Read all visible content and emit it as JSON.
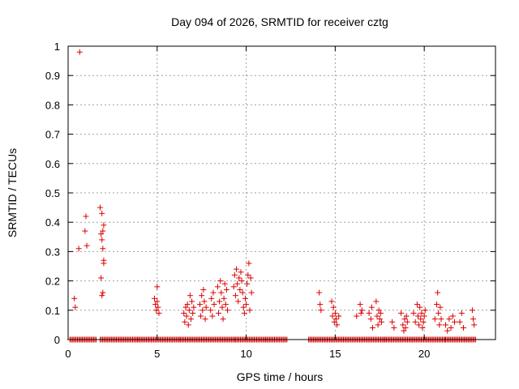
{
  "chart_data": {
    "type": "scatter",
    "title": "Day 094 of 2026, SRMTID for receiver cztg",
    "xlabel": "GPS time / hours",
    "ylabel": "SRMTID / TECUs",
    "xlim": [
      0,
      24
    ],
    "ylim": [
      0,
      1
    ],
    "xticks": [
      0,
      5,
      10,
      15,
      20
    ],
    "yticks": [
      0,
      0.1,
      0.2,
      0.3,
      0.4,
      0.5,
      0.6,
      0.7,
      0.8,
      0.9,
      1
    ],
    "xtick_labels": [
      "0",
      "5",
      "10",
      "15",
      "20"
    ],
    "ytick_labels": [
      "0",
      "0.1",
      "0.2",
      "0.3",
      "0.4",
      "0.5",
      "0.6",
      "0.7",
      "0.8",
      "0.9",
      "1"
    ],
    "grid": true,
    "marker": "plus",
    "color": "#dd0000",
    "series": [
      {
        "name": "SRMTID",
        "points": [
          [
            0.35,
            0.14
          ],
          [
            0.4,
            0.11
          ],
          [
            0.6,
            0.31
          ],
          [
            0.65,
            0.98
          ],
          [
            0.95,
            0.37
          ],
          [
            1.0,
            0.42
          ],
          [
            1.05,
            0.32
          ],
          [
            1.8,
            0.45
          ],
          [
            1.85,
            0.36
          ],
          [
            1.9,
            0.43
          ],
          [
            1.9,
            0.34
          ],
          [
            1.95,
            0.37
          ],
          [
            1.95,
            0.31
          ],
          [
            2.0,
            0.26
          ],
          [
            2.0,
            0.39
          ],
          [
            1.85,
            0.21
          ],
          [
            1.9,
            0.15
          ],
          [
            1.95,
            0.16
          ],
          [
            2.0,
            0.27
          ],
          [
            4.85,
            0.14
          ],
          [
            4.9,
            0.12
          ],
          [
            4.95,
            0.1
          ],
          [
            5.0,
            0.13
          ],
          [
            5.0,
            0.18
          ],
          [
            5.05,
            0.11
          ],
          [
            5.1,
            0.09
          ],
          [
            6.5,
            0.09
          ],
          [
            6.55,
            0.06
          ],
          [
            6.6,
            0.11
          ],
          [
            6.65,
            0.08
          ],
          [
            6.7,
            0.12
          ],
          [
            6.75,
            0.05
          ],
          [
            6.8,
            0.1
          ],
          [
            6.85,
            0.15
          ],
          [
            6.9,
            0.07
          ],
          [
            6.95,
            0.13
          ],
          [
            7.0,
            0.09
          ],
          [
            7.05,
            0.11
          ],
          [
            7.4,
            0.12
          ],
          [
            7.45,
            0.08
          ],
          [
            7.5,
            0.15
          ],
          [
            7.55,
            0.1
          ],
          [
            7.6,
            0.17
          ],
          [
            7.65,
            0.13
          ],
          [
            7.7,
            0.07
          ],
          [
            7.75,
            0.11
          ],
          [
            8.0,
            0.1
          ],
          [
            8.05,
            0.14
          ],
          [
            8.1,
            0.08
          ],
          [
            8.15,
            0.16
          ],
          [
            8.2,
            0.12
          ],
          [
            8.4,
            0.18
          ],
          [
            8.45,
            0.09
          ],
          [
            8.5,
            0.13
          ],
          [
            8.55,
            0.2
          ],
          [
            8.6,
            0.16
          ],
          [
            8.65,
            0.11
          ],
          [
            8.7,
            0.07
          ],
          [
            8.75,
            0.14
          ],
          [
            8.8,
            0.19
          ],
          [
            8.85,
            0.12
          ],
          [
            8.9,
            0.17
          ],
          [
            8.95,
            0.1
          ],
          [
            9.3,
            0.18
          ],
          [
            9.35,
            0.22
          ],
          [
            9.4,
            0.15
          ],
          [
            9.45,
            0.24
          ],
          [
            9.5,
            0.19
          ],
          [
            9.55,
            0.13
          ],
          [
            9.6,
            0.21
          ],
          [
            9.65,
            0.17
          ],
          [
            9.7,
            0.23
          ],
          [
            9.75,
            0.2
          ],
          [
            9.8,
            0.16
          ],
          [
            9.85,
            0.11
          ],
          [
            9.9,
            0.09
          ],
          [
            9.95,
            0.14
          ],
          [
            10.0,
            0.12
          ],
          [
            10.05,
            0.19
          ],
          [
            10.1,
            0.22
          ],
          [
            10.15,
            0.26
          ],
          [
            10.2,
            0.1
          ],
          [
            10.25,
            0.21
          ],
          [
            10.3,
            0.16
          ],
          [
            14.1,
            0.16
          ],
          [
            14.15,
            0.12
          ],
          [
            14.2,
            0.1
          ],
          [
            14.8,
            0.13
          ],
          [
            14.85,
            0.08
          ],
          [
            14.9,
            0.11
          ],
          [
            14.95,
            0.06
          ],
          [
            15.0,
            0.09
          ],
          [
            15.05,
            0.07
          ],
          [
            15.1,
            0.05
          ],
          [
            15.2,
            0.08
          ],
          [
            16.2,
            0.08
          ],
          [
            16.4,
            0.12
          ],
          [
            16.45,
            0.09
          ],
          [
            16.5,
            0.1
          ],
          [
            16.9,
            0.09
          ],
          [
            17.0,
            0.07
          ],
          [
            17.05,
            0.11
          ],
          [
            17.1,
            0.04
          ],
          [
            17.3,
            0.13
          ],
          [
            17.35,
            0.08
          ],
          [
            17.4,
            0.05
          ],
          [
            17.45,
            0.1
          ],
          [
            17.5,
            0.07
          ],
          [
            17.55,
            0.09
          ],
          [
            17.6,
            0.06
          ],
          [
            18.2,
            0.06
          ],
          [
            18.3,
            0.04
          ],
          [
            18.7,
            0.09
          ],
          [
            18.8,
            0.05
          ],
          [
            18.85,
            0.03
          ],
          [
            18.9,
            0.07
          ],
          [
            18.95,
            0.04
          ],
          [
            19.0,
            0.08
          ],
          [
            19.05,
            0.06
          ],
          [
            19.4,
            0.09
          ],
          [
            19.5,
            0.06
          ],
          [
            19.6,
            0.12
          ],
          [
            19.65,
            0.08
          ],
          [
            19.7,
            0.05
          ],
          [
            19.75,
            0.11
          ],
          [
            19.8,
            0.07
          ],
          [
            19.85,
            0.09
          ],
          [
            19.9,
            0.04
          ],
          [
            19.95,
            0.06
          ],
          [
            20.0,
            0.08
          ],
          [
            20.05,
            0.1
          ],
          [
            20.6,
            0.07
          ],
          [
            20.7,
            0.12
          ],
          [
            20.75,
            0.16
          ],
          [
            20.8,
            0.09
          ],
          [
            20.85,
            0.05
          ],
          [
            20.9,
            0.11
          ],
          [
            20.95,
            0.07
          ],
          [
            21.2,
            0.05
          ],
          [
            21.3,
            0.03
          ],
          [
            21.4,
            0.07
          ],
          [
            21.5,
            0.04
          ],
          [
            21.6,
            0.08
          ],
          [
            21.7,
            0.06
          ],
          [
            22.0,
            0.06
          ],
          [
            22.1,
            0.09
          ],
          [
            22.2,
            0.04
          ],
          [
            22.7,
            0.1
          ],
          [
            22.75,
            0.07
          ],
          [
            22.8,
            0.05
          ]
        ],
        "zero_runs": [
          [
            0.1,
            1.6
          ],
          [
            1.8,
            3.9
          ],
          [
            3.9,
            6.3
          ],
          [
            6.3,
            9.4
          ],
          [
            9.4,
            11.1
          ],
          [
            11.1,
            12.3
          ],
          [
            13.5,
            17.8
          ],
          [
            17.8,
            21.2
          ],
          [
            21.2,
            22.9
          ]
        ]
      }
    ]
  }
}
